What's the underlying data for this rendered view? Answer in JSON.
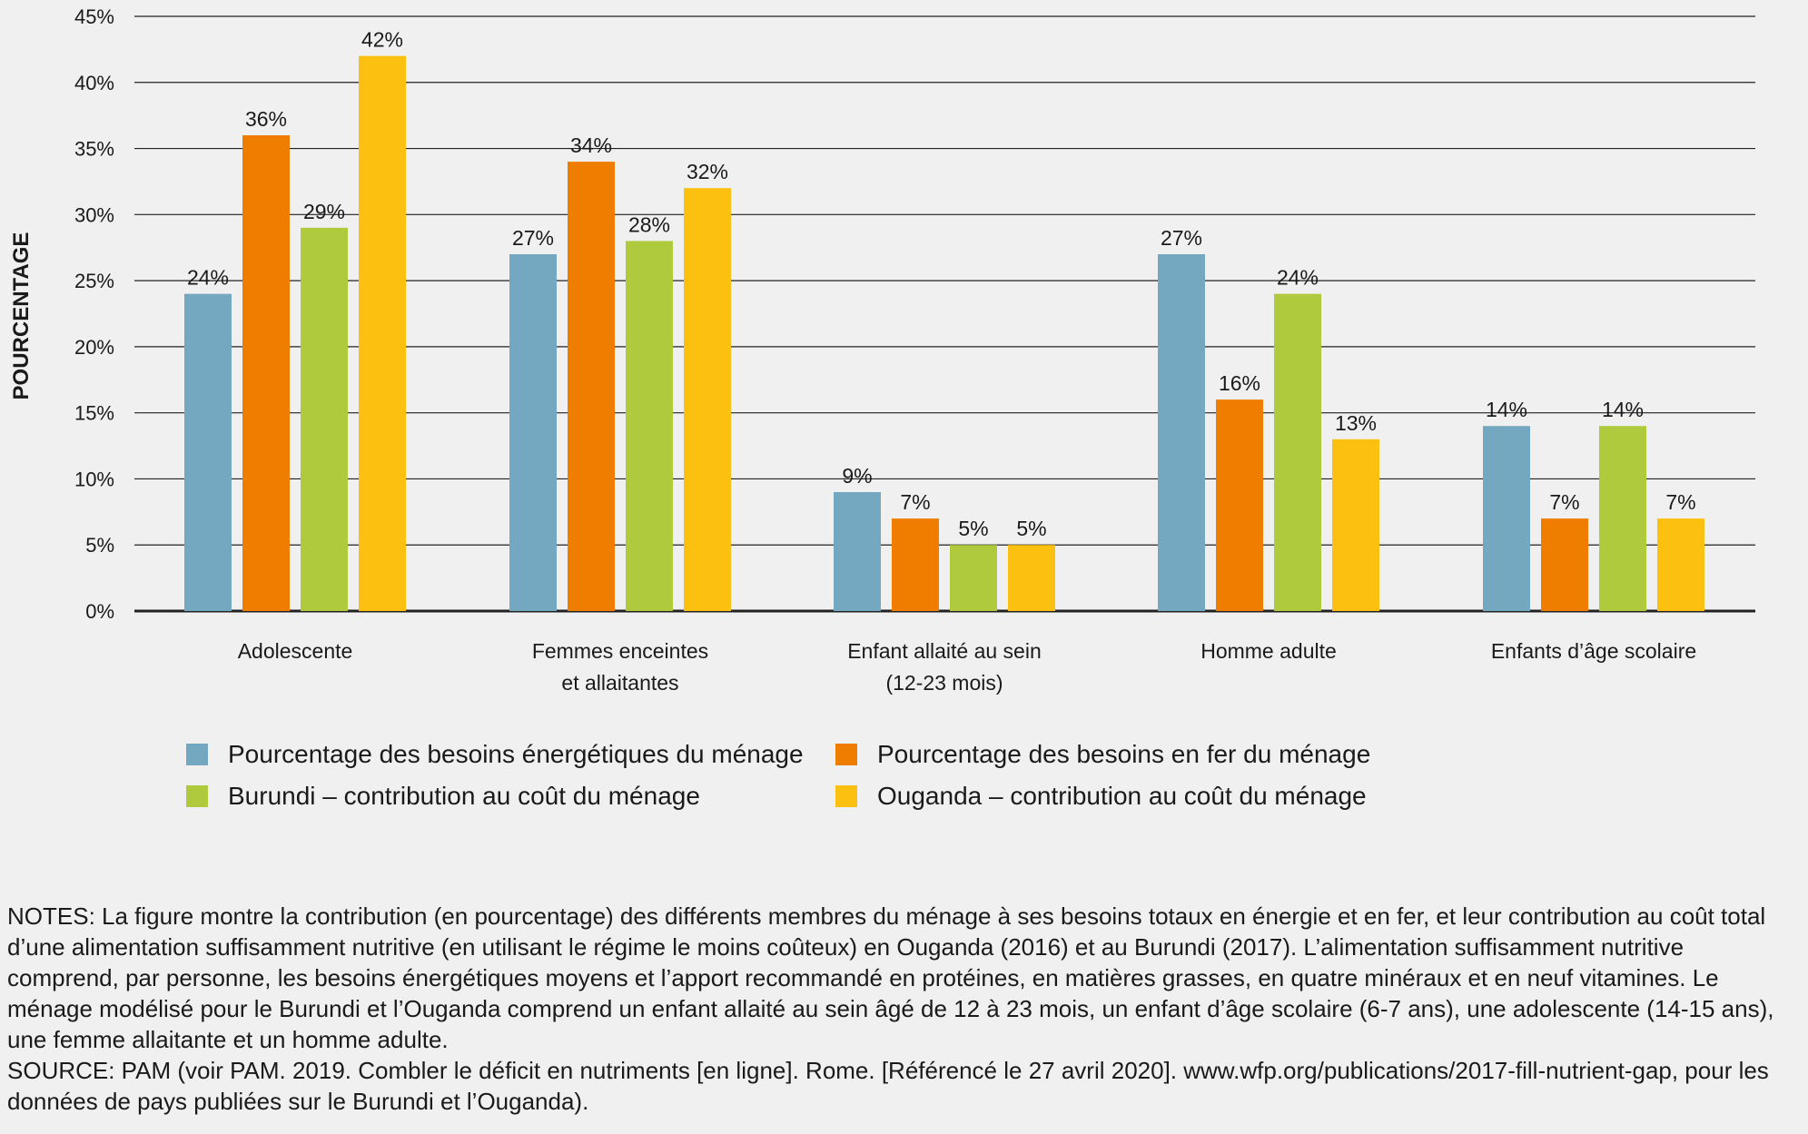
{
  "chart_data": {
    "type": "bar",
    "title": "",
    "xlabel": "",
    "ylabel": "POURCENTAGE",
    "ylim": [
      0,
      45
    ],
    "yticks": [
      "0%",
      "5%",
      "10%",
      "15%",
      "20%",
      "25%",
      "30%",
      "35%",
      "40%",
      "45%"
    ],
    "ytick_values": [
      0,
      5,
      10,
      15,
      20,
      25,
      30,
      35,
      40,
      45
    ],
    "grid": true,
    "legend_position": "bottom",
    "categories": [
      [
        "Adolescente"
      ],
      [
        "Femmes enceintes",
        "et allaitantes"
      ],
      [
        "Enfant allaité au sein",
        "(12-23 mois)"
      ],
      [
        "Homme adulte"
      ],
      [
        "Enfants d’âge scolaire"
      ]
    ],
    "series": [
      {
        "name": "Pourcentage des besoins énergétiques du ménage",
        "color": "#74a7c0",
        "values": [
          24,
          27,
          9,
          27,
          14
        ],
        "labels": [
          "24%",
          "27%",
          "9%",
          "27%",
          "14%"
        ]
      },
      {
        "name": "Pourcentage des besoins en fer du ménage",
        "color": "#ef7d00",
        "values": [
          36,
          34,
          7,
          16,
          7
        ],
        "labels": [
          "36%",
          "34%",
          "7%",
          "16%",
          "7%"
        ]
      },
      {
        "name": "Burundi – contribution au coût du ménage",
        "color": "#afca3c",
        "values": [
          29,
          28,
          5,
          24,
          14
        ],
        "labels": [
          "29%",
          "28%",
          "5%",
          "24%",
          "14%"
        ]
      },
      {
        "name": "Ouganda – contribution au coût du ménage",
        "color": "#fcc010",
        "values": [
          42,
          32,
          5,
          13,
          7
        ],
        "labels": [
          "42%",
          "32%",
          "5%",
          "13%",
          "7%"
        ]
      }
    ]
  },
  "legend": [
    {
      "label": "Pourcentage des besoins énergétiques du ménage",
      "color": "#74a7c0"
    },
    {
      "label": "Pourcentage des besoins en fer du ménage",
      "color": "#ef7d00"
    },
    {
      "label": "Burundi – contribution au coût du ménage",
      "color": "#afca3c"
    },
    {
      "label": "Ouganda – contribution au coût du ménage",
      "color": "#fcc010"
    }
  ],
  "notes": {
    "notes_text": "NOTES: La figure montre la contribution (en pourcentage) des différents membres du ménage à ses besoins totaux en énergie et en fer, et leur contribution au coût total d’une alimentation suffisamment nutritive (en utilisant le régime le moins coûteux) en Ouganda (2016) et au Burundi (2017). L’alimentation suffisamment nutritive comprend, par personne, les besoins énergétiques moyens et l’apport recommandé en protéines, en matières grasses, en quatre minéraux et en neuf vitamines. Le ménage modélisé pour le Burundi et l’Ouganda comprend un enfant allaité au sein âgé de 12 à 23 mois, un enfant d’âge scolaire (6-7 ans), une adolescente (14-15 ans), une femme allaitante et un homme adulte.",
    "source_text": "SOURCE: PAM (voir PAM. 2019. Combler le déficit en nutriments [en ligne]. Rome. [Référencé le 27 avril 2020]. www.wfp.org/publications/2017-fill-nutrient-gap, pour les données de pays publiées sur le Burundi et l’Ouganda)."
  }
}
